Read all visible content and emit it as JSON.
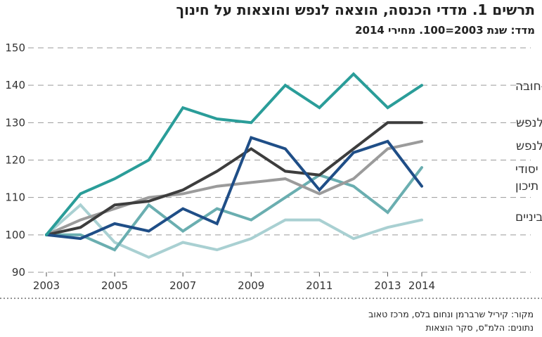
{
  "title": "תרשים 1. מדדי הכנסה, הוצאה לנפש והוצאות על חינוך",
  "subtitle": "מדד: שנת 2003=100. מחירי 2014",
  "source": "מקור: קיריל שרברמן ונחום בלס, מרכז טאוב",
  "data_note": "נתונים: הלמ\"ס, סקר הוצאות",
  "chart_data": {
    "type": "line",
    "xlabel": "",
    "ylabel": "",
    "ylim": [
      90,
      150
    ],
    "xlim": [
      2003,
      2014
    ],
    "yticks": [
      90,
      100,
      110,
      120,
      130,
      140,
      150
    ],
    "xticks": [
      2003,
      2005,
      2007,
      2009,
      2011,
      2013,
      2014
    ],
    "grid": "horizontal dashed",
    "x": [
      2003,
      2004,
      2005,
      2006,
      2007,
      2008,
      2009,
      2010,
      2011,
      2012,
      2013,
      2014
    ],
    "series": [
      {
        "name": "טרום-חובה",
        "color": "#2a9d99",
        "values": [
          100,
          111,
          115,
          120,
          134,
          131,
          130,
          140,
          134,
          143,
          134,
          140
        ],
        "label_lines": [
          "טרום-חובה"
        ]
      },
      {
        "name": "הכנסה נטו לנפש",
        "color": "#3d3d3d",
        "values": [
          100,
          102,
          108,
          109,
          112,
          117,
          123,
          117,
          116,
          123,
          130,
          130
        ],
        "label_lines": [
          "הכנסה נטו לנפש"
        ]
      },
      {
        "name": "הוצאה לנפש",
        "color": "#9b9b9b",
        "values": [
          100,
          104,
          107,
          110,
          111,
          113,
          114,
          115,
          111,
          115,
          123,
          125
        ],
        "label_lines": [
          "הוצאה לנפש"
        ]
      },
      {
        "name": "יסודי",
        "color": "#1f4e87",
        "values": [
          100,
          99,
          103,
          101,
          107,
          103,
          126,
          123,
          112,
          122,
          125,
          113
        ],
        "label_lines": [
          "יסודי"
        ]
      },
      {
        "name": "תיכון",
        "color": "#6aaeb0",
        "values": [
          100,
          100,
          96,
          108,
          101,
          107,
          104,
          110,
          116,
          113,
          106,
          118
        ],
        "label_lines": [
          "תיכון"
        ]
      },
      {
        "name": "חטיבת ביניים",
        "color": "#a9d0d2",
        "values": [
          100,
          108,
          98,
          94,
          98,
          96,
          99,
          104,
          104,
          99,
          102,
          104
        ],
        "label_lines": [
          "חטיבת ביניים"
        ]
      }
    ]
  }
}
